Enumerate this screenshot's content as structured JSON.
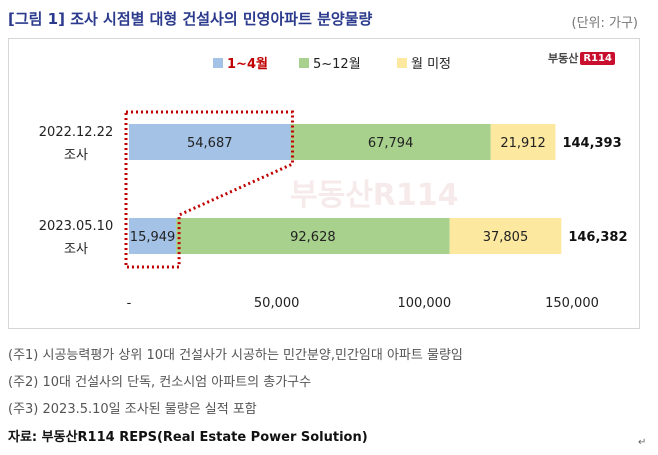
{
  "header": {
    "title": "[그림 1] 조사 시점별 대형 건설사의 민영아파트 분양물량",
    "unit": "(단위: 가구)"
  },
  "logo": {
    "text": "부동산",
    "badge": "R114"
  },
  "watermark": "부동산R114",
  "chart_data": {
    "type": "bar",
    "orientation": "horizontal",
    "stacked": true,
    "categories": [
      "2022.12.22\n조사",
      "2023.05.10\n조사"
    ],
    "category_lines": [
      [
        "2022.12.22",
        "조사"
      ],
      [
        "2023.05.10",
        "조사"
      ]
    ],
    "series": [
      {
        "name": "1~4월",
        "color": "#a4c2e6",
        "values": [
          54687,
          15949
        ],
        "labels": [
          "54,687",
          "15,949"
        ]
      },
      {
        "name": "5~12월",
        "color": "#a8d18d",
        "values": [
          67794,
          92628
        ],
        "labels": [
          "67,794",
          "92,628"
        ]
      },
      {
        "name": "월 미정",
        "color": "#fde8a0",
        "values": [
          21912,
          37805
        ],
        "labels": [
          "21,912",
          "37,805"
        ]
      }
    ],
    "totals": [
      "144,393",
      "146,382"
    ],
    "total_values": [
      144393,
      146382
    ],
    "xlim": [
      0,
      150000
    ],
    "xticks": [
      0,
      50000,
      100000,
      150000
    ],
    "xtick_labels": [
      "-",
      "50,000",
      "100,000",
      "150,000"
    ],
    "legend_position": "top",
    "grid": false
  },
  "notes": [
    "(주1) 시공능력평가 상위 10대 건설사가 시공하는 민간분양,민간임대 아파트 물량임",
    "(주2) 10대 건설사의 단독, 컨소시엄 아파트의 총가구수",
    "(주3) 2023.5.10일 조사된 물량은 실적 포함"
  ],
  "source": "자료: 부동산R114 REPS(Real Estate Power Solution)",
  "corner_mark": "↵"
}
